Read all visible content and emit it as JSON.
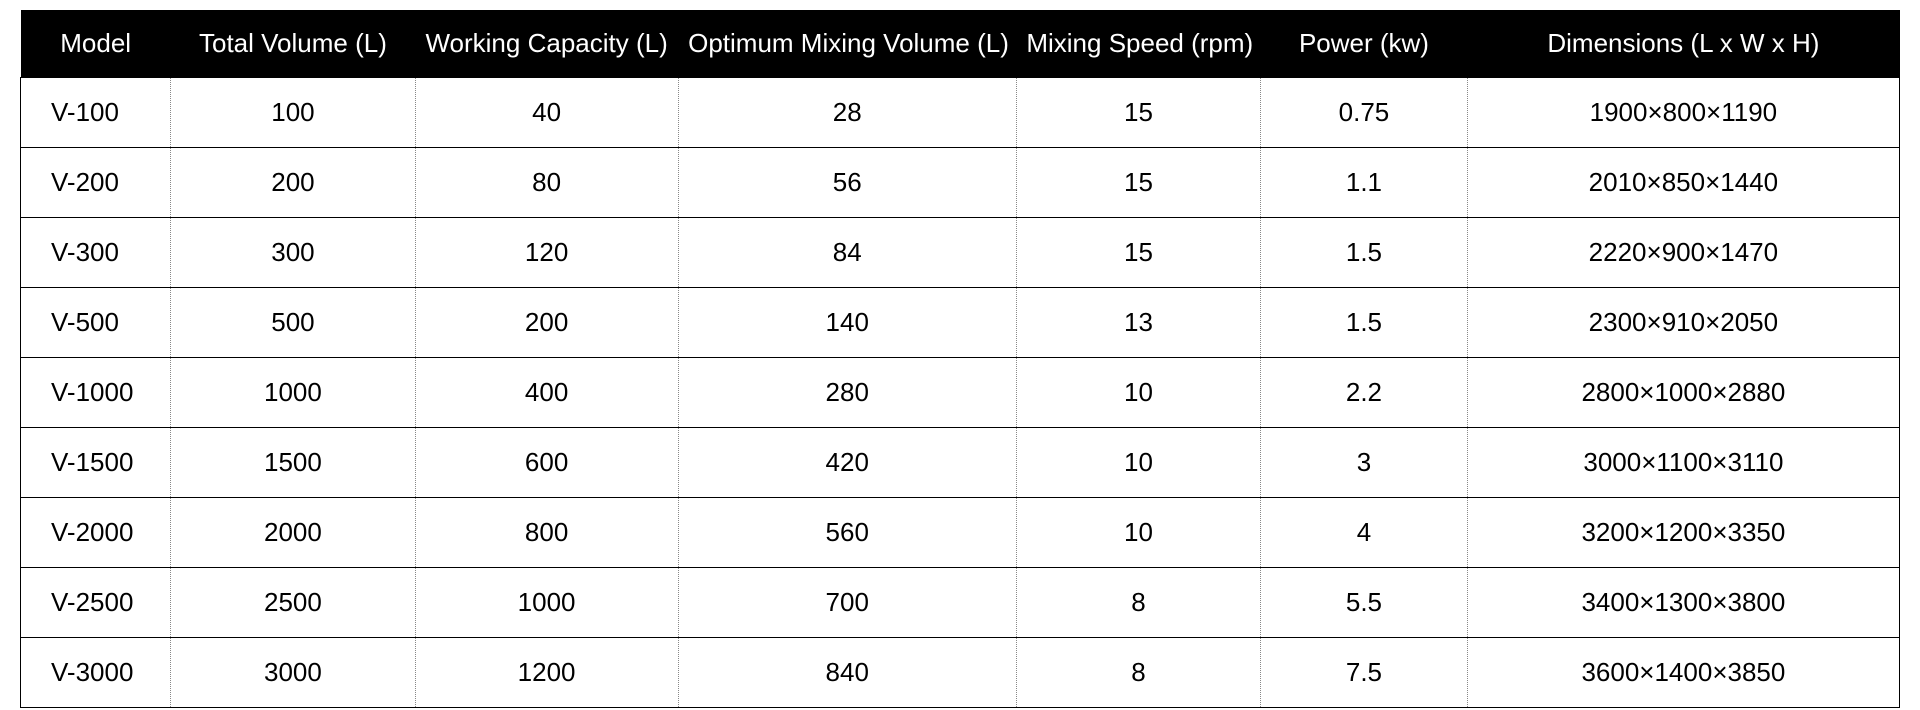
{
  "table": {
    "header_bg": "#000000",
    "header_fg": "#ffffff",
    "body_bg": "#ffffff",
    "body_fg": "#000000",
    "border_color": "#000000",
    "dotted_border_color": "#888888",
    "header_fontsize": 26,
    "body_fontsize": 26,
    "columns": [
      {
        "key": "model",
        "label": "Model",
        "width_pct": 8,
        "align_body": "left"
      },
      {
        "key": "total_volume",
        "label": "Total Volume (L)",
        "width_pct": 13,
        "align_body": "center"
      },
      {
        "key": "working_capacity",
        "label": "Working Capacity (L)",
        "width_pct": 14,
        "align_body": "center"
      },
      {
        "key": "optimum_mixing_volume",
        "label": "Optimum Mixing Volume (L)",
        "width_pct": 18,
        "align_body": "center"
      },
      {
        "key": "mixing_speed",
        "label": "Mixing Speed (rpm)",
        "width_pct": 13,
        "align_body": "center"
      },
      {
        "key": "power",
        "label": "Power (kw)",
        "width_pct": 11,
        "align_body": "center"
      },
      {
        "key": "dimensions",
        "label": "Dimensions (L x W x H)",
        "width_pct": 23,
        "align_body": "center"
      }
    ],
    "rows": [
      {
        "model": "V-100",
        "total_volume": "100",
        "working_capacity": "40",
        "optimum_mixing_volume": "28",
        "mixing_speed": "15",
        "power": "0.75",
        "dimensions": "1900×800×1190"
      },
      {
        "model": "V-200",
        "total_volume": "200",
        "working_capacity": "80",
        "optimum_mixing_volume": "56",
        "mixing_speed": "15",
        "power": "1.1",
        "dimensions": "2010×850×1440"
      },
      {
        "model": "V-300",
        "total_volume": "300",
        "working_capacity": "120",
        "optimum_mixing_volume": "84",
        "mixing_speed": "15",
        "power": "1.5",
        "dimensions": "2220×900×1470"
      },
      {
        "model": "V-500",
        "total_volume": "500",
        "working_capacity": "200",
        "optimum_mixing_volume": "140",
        "mixing_speed": "13",
        "power": "1.5",
        "dimensions": "2300×910×2050"
      },
      {
        "model": "V-1000",
        "total_volume": "1000",
        "working_capacity": "400",
        "optimum_mixing_volume": "280",
        "mixing_speed": "10",
        "power": "2.2",
        "dimensions": "2800×1000×2880"
      },
      {
        "model": "V-1500",
        "total_volume": "1500",
        "working_capacity": "600",
        "optimum_mixing_volume": "420",
        "mixing_speed": "10",
        "power": "3",
        "dimensions": "3000×1100×3110"
      },
      {
        "model": "V-2000",
        "total_volume": "2000",
        "working_capacity": "800",
        "optimum_mixing_volume": "560",
        "mixing_speed": "10",
        "power": "4",
        "dimensions": "3200×1200×3350"
      },
      {
        "model": "V-2500",
        "total_volume": "2500",
        "working_capacity": "1000",
        "optimum_mixing_volume": "700",
        "mixing_speed": "8",
        "power": "5.5",
        "dimensions": "3400×1300×3800"
      },
      {
        "model": "V-3000",
        "total_volume": "3000",
        "working_capacity": "1200",
        "optimum_mixing_volume": "840",
        "mixing_speed": "8",
        "power": "7.5",
        "dimensions": "3600×1400×3850"
      }
    ]
  }
}
